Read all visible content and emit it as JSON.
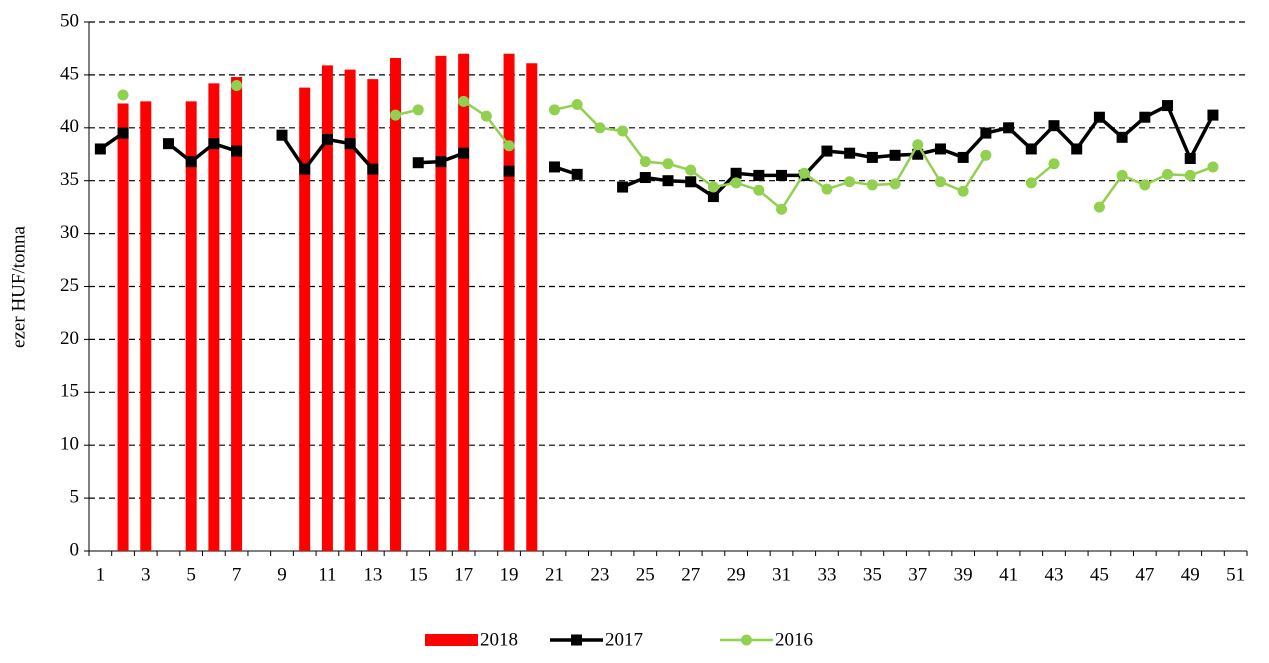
{
  "chart_data": {
    "type": "bar_line",
    "y_axis_label": "ezer HUF/tonna",
    "categories": [
      1,
      null,
      3,
      null,
      5,
      null,
      7,
      null,
      9,
      null,
      11,
      null,
      13,
      null,
      15,
      null,
      17,
      null,
      19,
      null,
      21,
      null,
      23,
      null,
      25,
      null,
      27,
      null,
      29,
      null,
      31,
      null,
      33,
      null,
      35,
      null,
      37,
      null,
      39,
      null,
      41,
      null,
      43,
      null,
      45,
      null,
      47,
      null,
      49,
      null,
      51
    ],
    "ylim": [
      0,
      50
    ],
    "yticks": [
      0,
      5,
      10,
      15,
      20,
      25,
      30,
      35,
      40,
      45,
      50
    ],
    "grid": true,
    "legend": "bottom",
    "series": [
      {
        "name": "2018",
        "type": "bar",
        "color": "#ff0000",
        "values": [
          null,
          42.3,
          42.5,
          null,
          42.5,
          44.2,
          44.8,
          null,
          null,
          43.8,
          45.9,
          45.5,
          44.6,
          46.6,
          null,
          46.8,
          47.0,
          null,
          47.0,
          46.1,
          null,
          null,
          null,
          null,
          null,
          null,
          null,
          null,
          null,
          null,
          null,
          null,
          null,
          null,
          null,
          null,
          null,
          null,
          null,
          null,
          null,
          null,
          null,
          null,
          null,
          null,
          null,
          null,
          null,
          null,
          null
        ]
      },
      {
        "name": "2017",
        "type": "line",
        "marker": "square",
        "color": "#000000",
        "values": [
          38.0,
          39.5,
          null,
          38.5,
          36.8,
          38.5,
          37.8,
          null,
          39.3,
          36.1,
          38.9,
          38.5,
          36.1,
          null,
          36.7,
          36.8,
          37.6,
          null,
          35.9,
          null,
          36.3,
          35.6,
          null,
          34.4,
          35.3,
          35.0,
          34.9,
          33.5,
          35.7,
          35.5,
          35.5,
          35.5,
          37.8,
          37.6,
          37.2,
          37.4,
          37.5,
          38.0,
          37.2,
          39.5,
          40.0,
          38.0,
          40.2,
          38.0,
          41.0,
          39.1,
          41.0,
          42.1,
          37.1,
          41.2,
          null
        ]
      },
      {
        "name": "2016",
        "type": "line",
        "marker": "circle",
        "color": "#92d050",
        "values": [
          null,
          43.1,
          null,
          null,
          null,
          null,
          44.0,
          null,
          null,
          null,
          null,
          null,
          null,
          41.2,
          41.7,
          null,
          42.5,
          41.1,
          38.3,
          null,
          41.7,
          42.2,
          40.0,
          39.7,
          36.8,
          36.6,
          36.0,
          34.4,
          34.8,
          34.1,
          32.3,
          35.7,
          34.2,
          34.9,
          34.6,
          34.7,
          38.4,
          34.9,
          34.0,
          37.4,
          null,
          34.8,
          36.6,
          null,
          32.5,
          35.5,
          34.6,
          35.6,
          35.5,
          36.3,
          null
        ]
      }
    ]
  }
}
